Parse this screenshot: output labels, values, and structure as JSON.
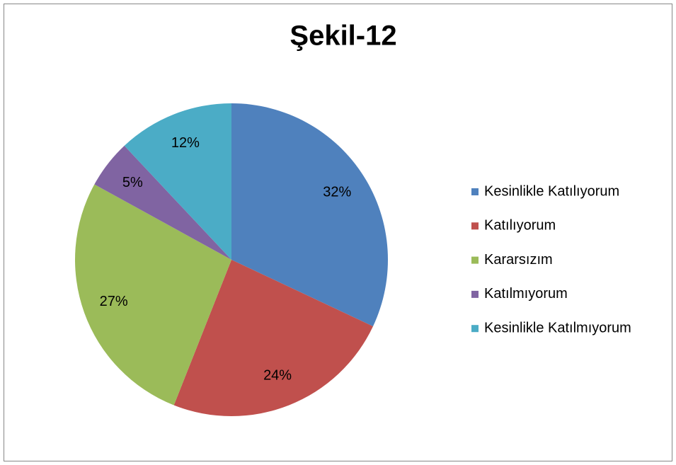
{
  "chart_data": {
    "type": "pie",
    "title": "Şekil-12",
    "categories": [
      "Kesinlikle Katılıyorum",
      "Katılıyorum",
      "Kararsızım",
      "Katılmıyorum",
      "Kesinlikle Katılmıyorum"
    ],
    "values": [
      32,
      24,
      27,
      5,
      12
    ],
    "value_labels": [
      "32%",
      "24%",
      "27%",
      "5%",
      "12%"
    ],
    "colors": [
      "#4f81bd",
      "#c0504d",
      "#9bbb59",
      "#8064a2",
      "#4bacc6"
    ],
    "legend": "right"
  }
}
